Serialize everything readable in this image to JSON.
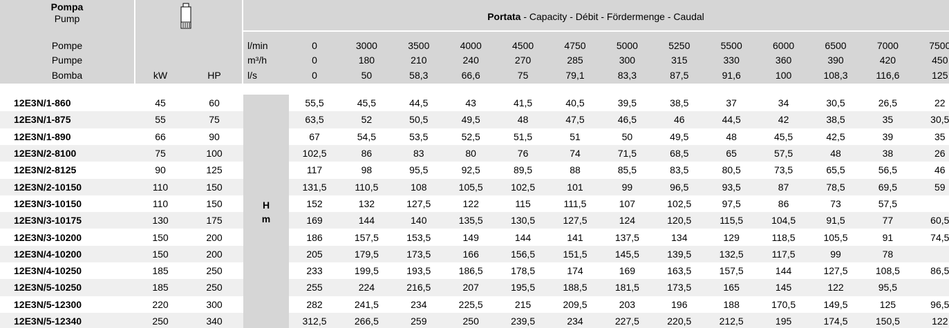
{
  "header": {
    "pump_label": [
      "Pompa",
      "Pump",
      "Pompe",
      "Pumpe",
      "Bomba"
    ],
    "power_units": [
      "kW",
      "HP"
    ],
    "flow_title": {
      "bold": "Portata",
      "rest": " - Capacity - Débit - Fördermenge - Caudal"
    },
    "flow_rows": [
      {
        "unit": "l/min",
        "values": [
          "0",
          "3000",
          "3500",
          "4000",
          "4500",
          "4750",
          "5000",
          "5250",
          "5500",
          "6000",
          "6500",
          "7000",
          "7500"
        ]
      },
      {
        "unit": "m³/h",
        "values": [
          "0",
          "180",
          "210",
          "240",
          "270",
          "285",
          "300",
          "315",
          "330",
          "360",
          "390",
          "420",
          "450"
        ]
      },
      {
        "unit": "l/s",
        "values": [
          "0",
          "50",
          "58,3",
          "66,6",
          "75",
          "79,1",
          "83,3",
          "87,5",
          "91,6",
          "100",
          "108,3",
          "116,6",
          "125"
        ]
      }
    ]
  },
  "head_unit": [
    "H",
    "m"
  ],
  "table": {
    "rows": [
      {
        "model": "12E3N/1-860",
        "kw": "45",
        "hp": "60",
        "values": [
          "55,5",
          "45,5",
          "44,5",
          "43",
          "41,5",
          "40,5",
          "39,5",
          "38,5",
          "37",
          "34",
          "30,5",
          "26,5",
          "22"
        ]
      },
      {
        "model": "12E3N/1-875",
        "kw": "55",
        "hp": "75",
        "values": [
          "63,5",
          "52",
          "50,5",
          "49,5",
          "48",
          "47,5",
          "46,5",
          "46",
          "44,5",
          "42",
          "38,5",
          "35",
          "30,5"
        ]
      },
      {
        "model": "12E3N/1-890",
        "kw": "66",
        "hp": "90",
        "values": [
          "67",
          "54,5",
          "53,5",
          "52,5",
          "51,5",
          "51",
          "50",
          "49,5",
          "48",
          "45,5",
          "42,5",
          "39",
          "35"
        ]
      },
      {
        "model": "12E3N/2-8100",
        "kw": "75",
        "hp": "100",
        "values": [
          "102,5",
          "86",
          "83",
          "80",
          "76",
          "74",
          "71,5",
          "68,5",
          "65",
          "57,5",
          "48",
          "38",
          "26"
        ]
      },
      {
        "model": "12E3N/2-8125",
        "kw": "90",
        "hp": "125",
        "values": [
          "117",
          "98",
          "95,5",
          "92,5",
          "89,5",
          "88",
          "85,5",
          "83,5",
          "80,5",
          "73,5",
          "65,5",
          "56,5",
          "46"
        ]
      },
      {
        "model": "12E3N/2-10150",
        "kw": "110",
        "hp": "150",
        "values": [
          "131,5",
          "110,5",
          "108",
          "105,5",
          "102,5",
          "101",
          "99",
          "96,5",
          "93,5",
          "87",
          "78,5",
          "69,5",
          "59"
        ]
      },
      {
        "model": "12E3N/3-10150",
        "kw": "110",
        "hp": "150",
        "values": [
          "152",
          "132",
          "127,5",
          "122",
          "115",
          "111,5",
          "107",
          "102,5",
          "97,5",
          "86",
          "73",
          "57,5"
        ]
      },
      {
        "model": "12E3N/3-10175",
        "kw": "130",
        "hp": "175",
        "values": [
          "169",
          "144",
          "140",
          "135,5",
          "130,5",
          "127,5",
          "124",
          "120,5",
          "115,5",
          "104,5",
          "91,5",
          "77",
          "60,5"
        ]
      },
      {
        "model": "12E3N/3-10200",
        "kw": "150",
        "hp": "200",
        "values": [
          "186",
          "157,5",
          "153,5",
          "149",
          "144",
          "141",
          "137,5",
          "134",
          "129",
          "118,5",
          "105,5",
          "91",
          "74,5"
        ]
      },
      {
        "model": "12E3N/4-10200",
        "kw": "150",
        "hp": "200",
        "values": [
          "205",
          "179,5",
          "173,5",
          "166",
          "156,5",
          "151,5",
          "145,5",
          "139,5",
          "132,5",
          "117,5",
          "99",
          "78"
        ]
      },
      {
        "model": "12E3N/4-10250",
        "kw": "185",
        "hp": "250",
        "values": [
          "233",
          "199,5",
          "193,5",
          "186,5",
          "178,5",
          "174",
          "169",
          "163,5",
          "157,5",
          "144",
          "127,5",
          "108,5",
          "86,5"
        ]
      },
      {
        "model": "12E3N/5-10250",
        "kw": "185",
        "hp": "250",
        "values": [
          "255",
          "224",
          "216,5",
          "207",
          "195,5",
          "188,5",
          "181,5",
          "173,5",
          "165",
          "145",
          "122",
          "95,5"
        ]
      },
      {
        "model": "12E3N/5-12300",
        "kw": "220",
        "hp": "300",
        "values": [
          "282",
          "241,5",
          "234",
          "225,5",
          "215",
          "209,5",
          "203",
          "196",
          "188",
          "170,5",
          "149,5",
          "125",
          "96,5"
        ]
      },
      {
        "model": "12E3N/5-12340",
        "kw": "250",
        "hp": "340",
        "values": [
          "312,5",
          "266,5",
          "259",
          "250",
          "239,5",
          "234",
          "227,5",
          "220,5",
          "212,5",
          "195",
          "174,5",
          "150,5",
          "122"
        ]
      }
    ]
  }
}
